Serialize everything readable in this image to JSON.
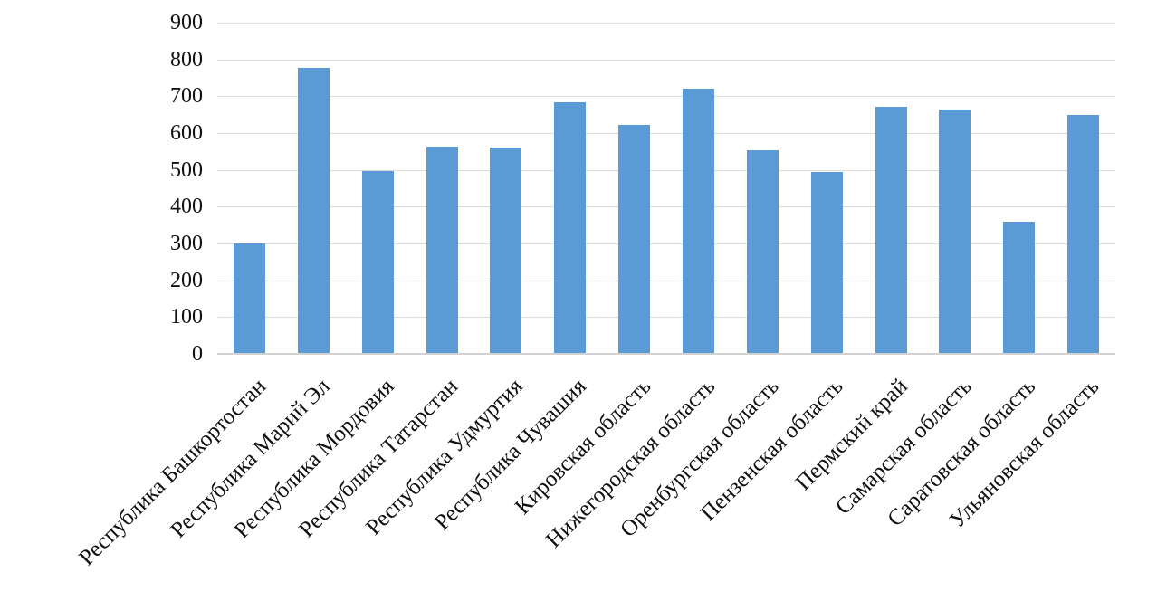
{
  "chart_data": {
    "type": "bar",
    "title": "",
    "xlabel": "",
    "ylabel": "",
    "categories": [
      "Республика Башкортостан",
      "Республика Марий Эл",
      "Республика Мордовия",
      "Республика Татарстан",
      "Республика Удмуртия",
      "Республика Чувашия",
      "Кировская область",
      "Нижегородская область",
      "Оренбургская область",
      "Пензенская область",
      "Пермский край",
      "Самарская область",
      "Саратовская область",
      "Ульяновская область"
    ],
    "values": [
      300,
      778,
      497,
      564,
      560,
      684,
      622,
      721,
      553,
      494,
      672,
      664,
      360,
      650
    ],
    "ylim": [
      0,
      900
    ],
    "yticks": [
      0,
      100,
      200,
      300,
      400,
      500,
      600,
      700,
      800,
      900
    ],
    "grid": "horizontal",
    "legend": "none",
    "x_label_rotation_deg": 45,
    "colors": {
      "bar": "#5b9bd5",
      "gridline": "#dcdcdc",
      "axis_line": "#d2d2d2",
      "tick_text": "#111111",
      "background": "#ffffff"
    }
  }
}
